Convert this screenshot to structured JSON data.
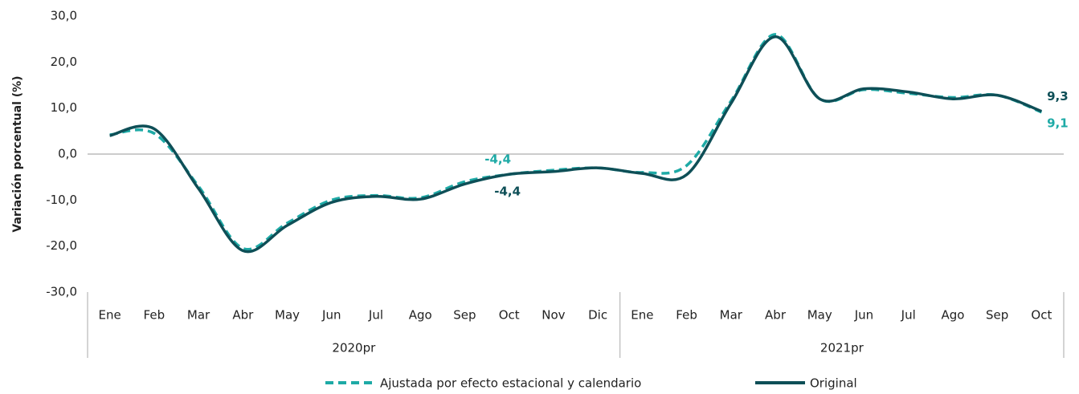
{
  "chart_data": {
    "type": "line",
    "y_label": "Variación porcentual (%)",
    "groups": [
      {
        "label": "2020pr",
        "categories": [
          "Ene",
          "Feb",
          "Mar",
          "Abr",
          "May",
          "Jun",
          "Jul",
          "Ago",
          "Sep",
          "Oct",
          "Nov",
          "Dic"
        ]
      },
      {
        "label": "2021pr",
        "categories": [
          "Ene",
          "Feb",
          "Mar",
          "Abr",
          "May",
          "Jun",
          "Jul",
          "Ago",
          "Sep",
          "Oct"
        ]
      }
    ],
    "series": [
      {
        "name": "Ajustada por efecto estacional y calendario",
        "color": "#1eaaa6",
        "dash": true,
        "values": [
          4.2,
          4.5,
          -7.0,
          -20.5,
          -15.0,
          -10.0,
          -9.0,
          -9.5,
          -6.0,
          -4.4,
          -3.5,
          -3.0,
          -4.0,
          -2.5,
          11.5,
          26.0,
          12.0,
          14.0,
          13.2,
          12.3,
          12.8,
          9.1
        ],
        "value_labels": [
          null,
          null,
          null,
          null,
          null,
          null,
          null,
          null,
          null,
          "-4,4",
          null,
          null,
          null,
          null,
          null,
          null,
          null,
          null,
          null,
          null,
          null,
          "9,1"
        ]
      },
      {
        "name": "Original",
        "color": "#0e4f57",
        "dash": false,
        "values": [
          4.0,
          5.5,
          -7.5,
          -21.0,
          -15.5,
          -10.5,
          -9.2,
          -9.8,
          -6.5,
          -4.4,
          -3.8,
          -3.0,
          -4.2,
          -4.5,
          11.0,
          25.5,
          12.0,
          14.2,
          13.5,
          12.0,
          12.8,
          9.3
        ],
        "value_labels": [
          null,
          null,
          null,
          null,
          null,
          null,
          null,
          null,
          null,
          "-4,4",
          null,
          null,
          null,
          null,
          null,
          null,
          null,
          null,
          null,
          null,
          null,
          "9,3"
        ]
      }
    ],
    "ylim": [
      -30,
      30
    ],
    "yticks": [
      {
        "value": -30,
        "label": "-30,0"
      },
      {
        "value": -20,
        "label": "-20,0"
      },
      {
        "value": -10,
        "label": "-10,0"
      },
      {
        "value": 0,
        "label": "0,0"
      },
      {
        "value": 10,
        "label": "10,0"
      },
      {
        "value": 20,
        "label": "20,0"
      },
      {
        "value": 30,
        "label": "30,0"
      }
    ]
  }
}
